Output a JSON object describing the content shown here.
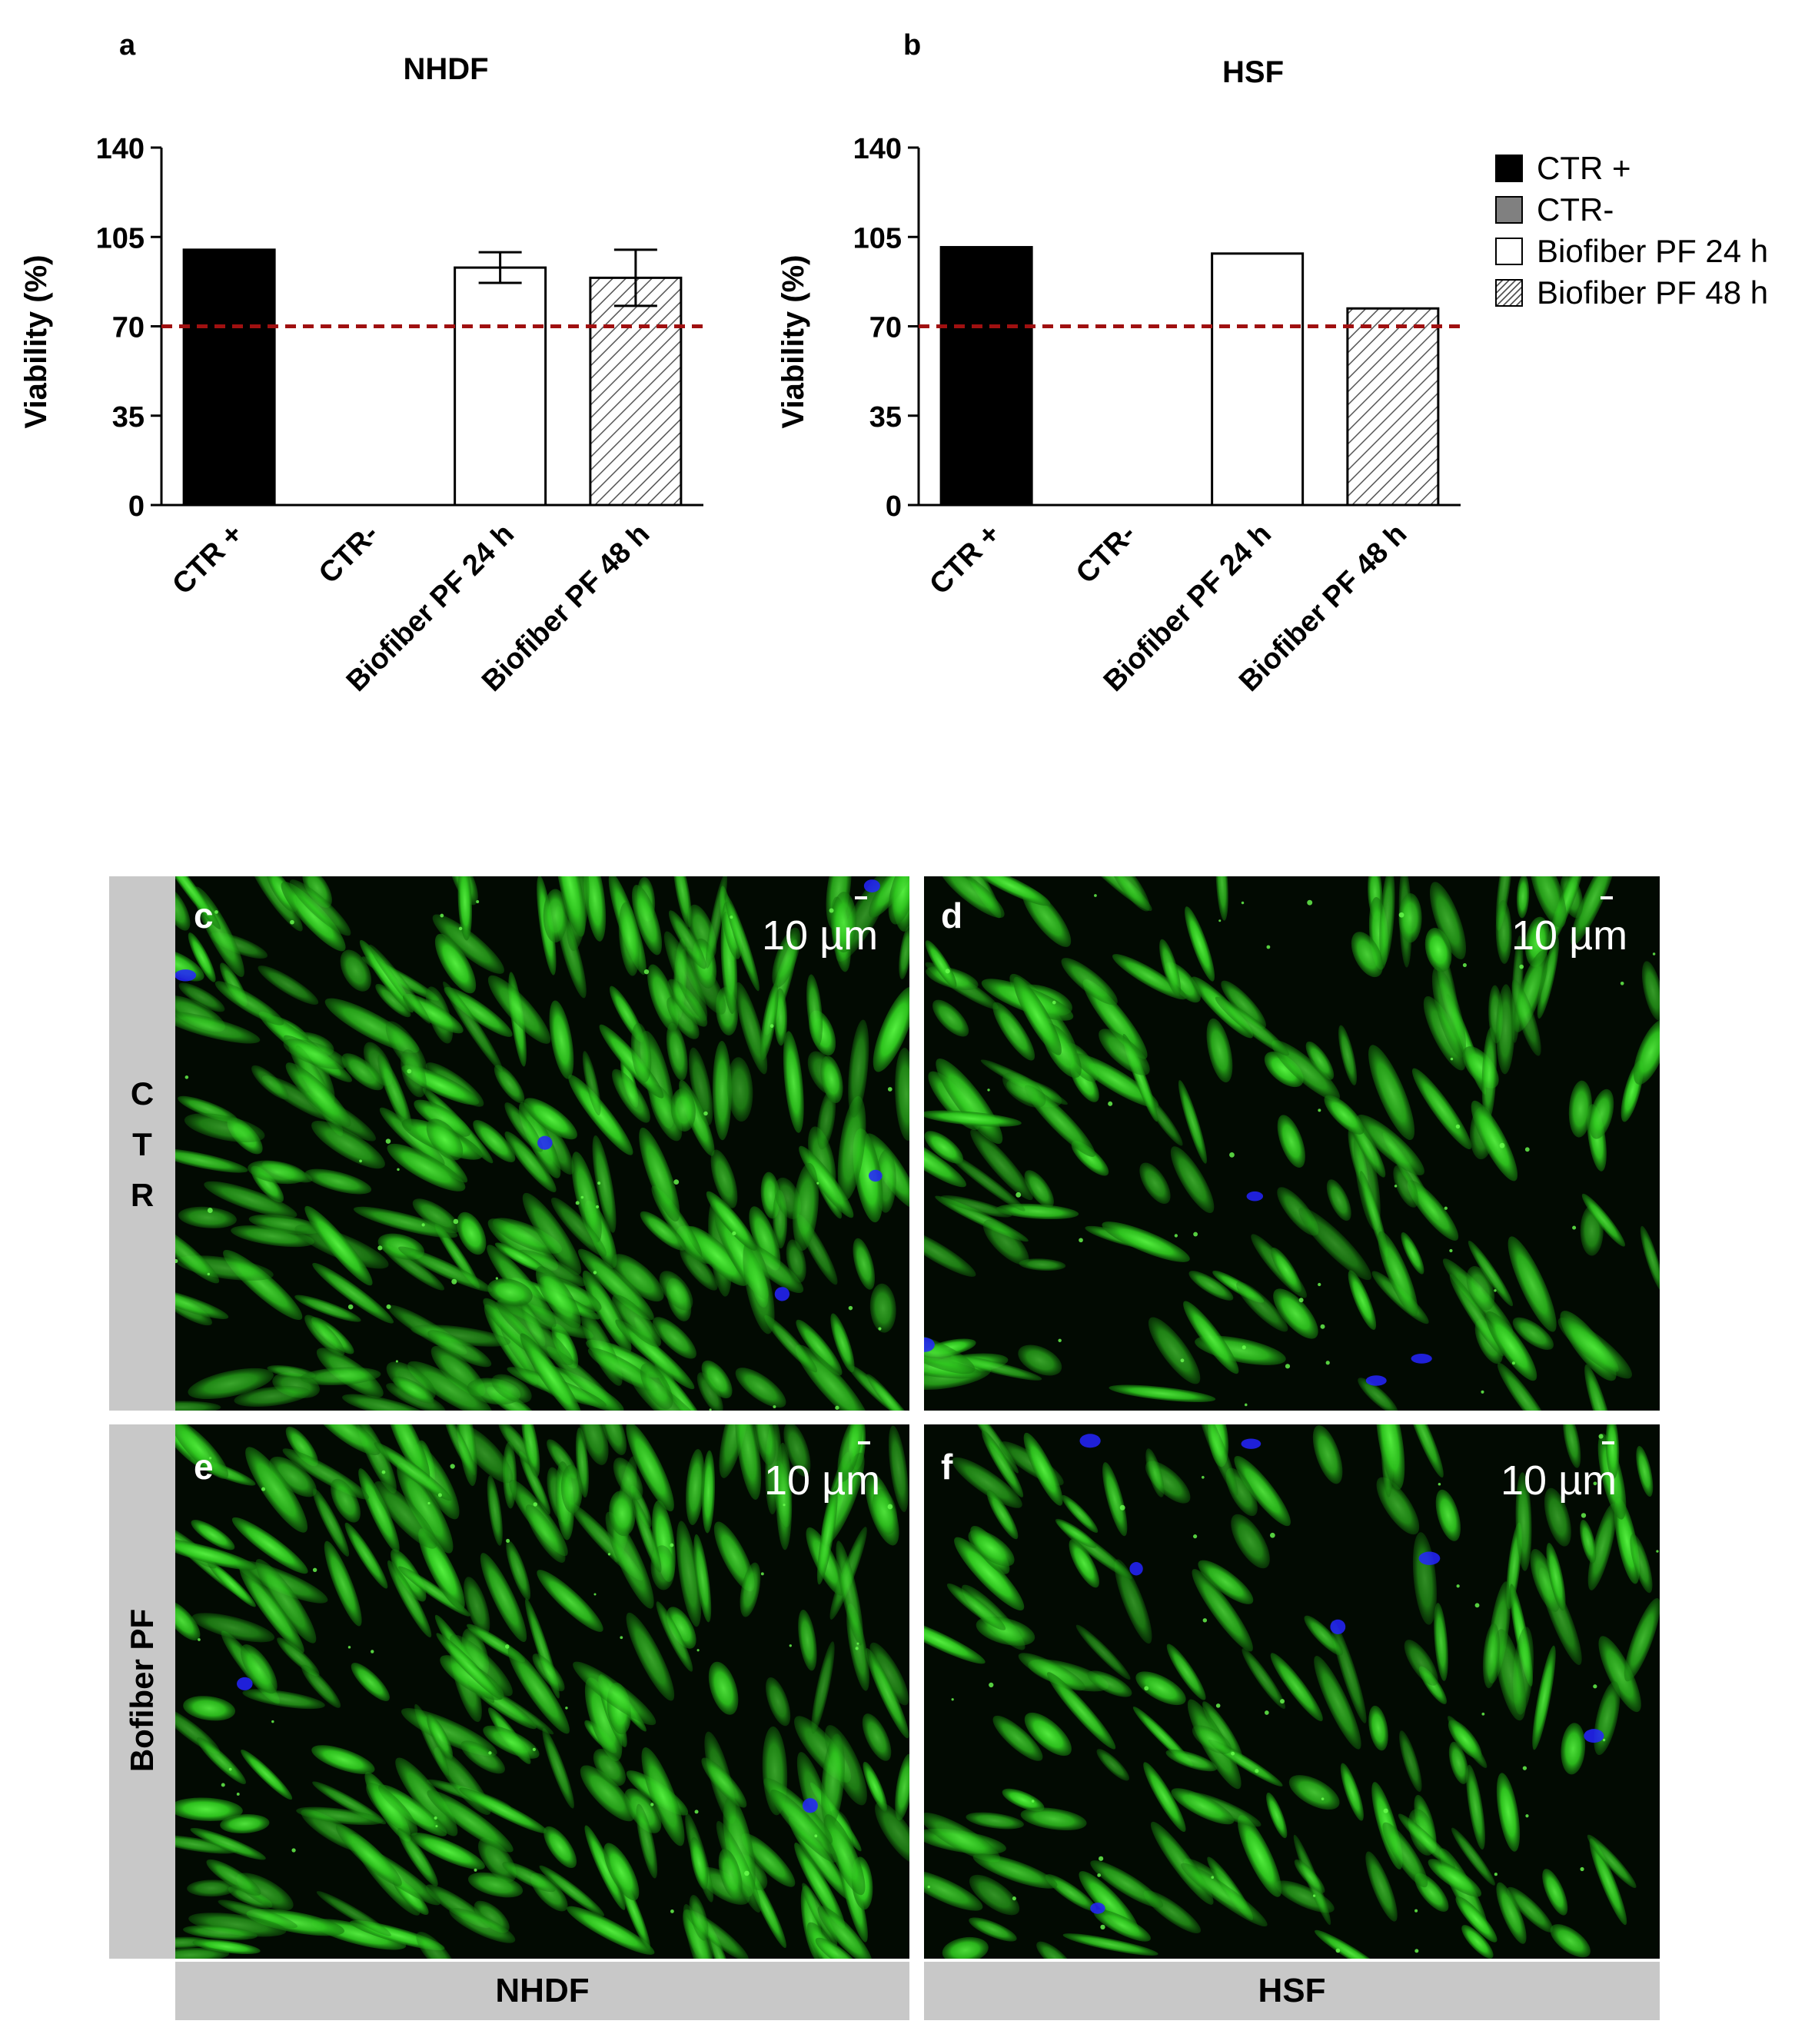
{
  "panel_letters": {
    "a": "a",
    "b": "b"
  },
  "legend": [
    {
      "label": "CTR +",
      "fill": "#000000",
      "pattern": "none"
    },
    {
      "label": "CTR-",
      "fill": "#808080",
      "pattern": "none"
    },
    {
      "label": "Biofiber PF 24 h",
      "fill": "#ffffff",
      "pattern": "none"
    },
    {
      "label": "Biofiber PF 48 h",
      "fill": "#ffffff",
      "pattern": "hatch"
    }
  ],
  "chart_data": [
    {
      "type": "bar",
      "panel": "a",
      "title": "NHDF",
      "ylabel": "Viability (%)",
      "ylim": [
        0,
        140
      ],
      "yticks": [
        0,
        35,
        70,
        105,
        140
      ],
      "threshold": 70,
      "categories": [
        "CTR +",
        "CTR-",
        "Biofiber PF 24 h",
        "Biofiber PF 48 h"
      ],
      "values": [
        100,
        0,
        93,
        89
      ],
      "errors": [
        0,
        0,
        6,
        11
      ],
      "fills": [
        "#000000",
        "#808080",
        "#ffffff",
        "hatch"
      ]
    },
    {
      "type": "bar",
      "panel": "b",
      "title": "HSF",
      "ylabel": "Viability (%)",
      "ylim": [
        0,
        140
      ],
      "yticks": [
        0,
        35,
        70,
        105,
        140
      ],
      "threshold": 70,
      "categories": [
        "CTR +",
        "CTR-",
        "Biofiber PF 24 h",
        "Biofiber PF 48 h"
      ],
      "values": [
        101,
        0,
        98.5,
        77
      ],
      "errors": [
        0,
        0,
        0,
        0
      ],
      "fills": [
        "#000000",
        "#808080",
        "#ffffff",
        "hatch"
      ]
    }
  ],
  "micrographs": [
    {
      "letter": "c",
      "scale": "10 µm",
      "seed": 11,
      "density": 260,
      "blue": 5
    },
    {
      "letter": "d",
      "scale": "10 µm",
      "seed": 23,
      "density": 150,
      "blue": 4
    },
    {
      "letter": "e",
      "scale": "10 µm",
      "seed": 37,
      "density": 230,
      "blue": 2
    },
    {
      "letter": "f",
      "scale": "10 µm",
      "seed": 53,
      "density": 140,
      "blue": 7
    }
  ],
  "row_labels": {
    "ctr": "C\nT\nR",
    "biofiber": "Bofiber PF"
  },
  "column_labels": {
    "nhdf": "NHDF",
    "hsf": "HSF"
  }
}
